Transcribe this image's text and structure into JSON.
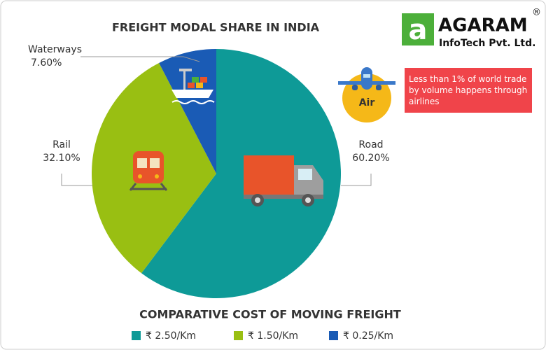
{
  "chart_data": {
    "type": "pie",
    "title": "FREIGHT MODAL SHARE IN INDIA",
    "categories": [
      "Road",
      "Rail",
      "Waterways"
    ],
    "values": [
      60.2,
      32.1,
      7.6
    ],
    "value_labels": [
      "60.20%",
      "32.10%",
      "7.60%"
    ],
    "colors": [
      "#0e9a97",
      "#99bf12",
      "#1a5bb5"
    ]
  },
  "cost_legend": {
    "title": "COMPARATIVE COST OF MOVING FREIGHT",
    "items": [
      {
        "label": "₹ 2.50/Km",
        "color": "#0e9a97"
      },
      {
        "label": "₹ 1.50/Km",
        "color": "#99bf12"
      },
      {
        "label": "₹ 0.25/Km",
        "color": "#1a5bb5"
      }
    ]
  },
  "logo": {
    "name": "AGARAM",
    "mark": "®",
    "subtitle": "InfoTech Pvt. Ltd."
  },
  "air": {
    "label": "Air",
    "note": "Less than 1% of world trade by volume happens through airlines"
  }
}
